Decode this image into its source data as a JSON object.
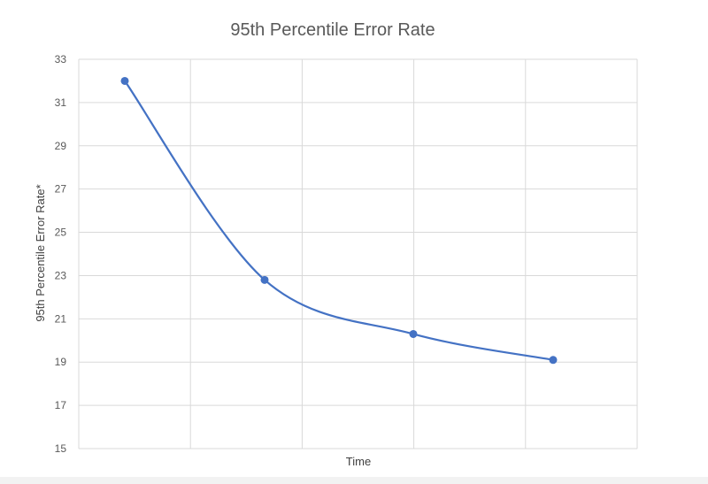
{
  "chart_data": {
    "type": "line",
    "title": "95th Percentile Error Rate",
    "xlabel": "Time",
    "ylabel": "95th Percentile Error Rate*",
    "x": [
      1,
      2,
      3,
      4
    ],
    "series": [
      {
        "values": [
          32.0,
          22.8,
          20.3,
          19.1
        ]
      }
    ],
    "ylim": [
      15,
      33
    ],
    "yticks": [
      15,
      17,
      19,
      21,
      23,
      25,
      27,
      29,
      31,
      33
    ],
    "grid": true,
    "smooth": true,
    "markers": true,
    "legend": "none"
  },
  "colors": {
    "series": "#4472c4",
    "grid": "#d9d9d9",
    "text": "#595959"
  }
}
